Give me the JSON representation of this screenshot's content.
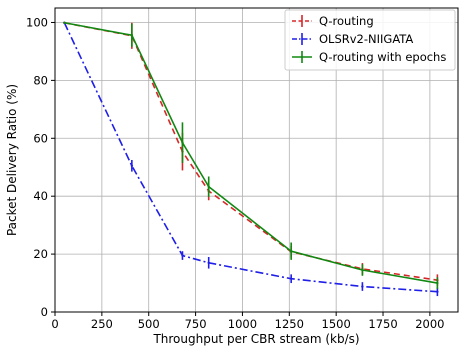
{
  "chart_data": {
    "type": "line",
    "title": "",
    "xlabel": "Throughput per CBR stream (kb/s)",
    "ylabel": "Packet Delivery Ratio (%)",
    "xlim": [
      0,
      2150
    ],
    "ylim": [
      0,
      105
    ],
    "x_ticks": [
      0,
      250,
      500,
      750,
      1000,
      1250,
      1500,
      1750,
      2000
    ],
    "y_ticks": [
      0,
      20,
      40,
      60,
      80,
      100
    ],
    "grid": true,
    "legend_position": "top-right",
    "series": [
      {
        "name": "Q-routing",
        "color": "#d62728",
        "line_style": "dashed",
        "x": [
          50,
          410,
          680,
          820,
          1260,
          1640,
          2040
        ],
        "y": [
          99.9,
          95.4,
          55.4,
          41.8,
          20.8,
          14.9,
          11.0
        ],
        "y_err": [
          0.2,
          4.5,
          6.5,
          3.2,
          2.0,
          2.0,
          2.0
        ]
      },
      {
        "name": "OLSRv2-NIIGATA",
        "color": "#1f1fe8",
        "line_style": "dashdot",
        "x": [
          50,
          410,
          680,
          820,
          1260,
          1640,
          2040
        ],
        "y": [
          99.9,
          50.5,
          19.5,
          17.0,
          11.5,
          8.8,
          7.0
        ],
        "y_err": [
          0.2,
          2.0,
          1.5,
          2.0,
          1.5,
          1.5,
          1.5
        ]
      },
      {
        "name": "Q-routing with epochs",
        "color": "#118811",
        "line_style": "solid",
        "x": [
          50,
          410,
          680,
          820,
          1260,
          1640,
          2040
        ],
        "y": [
          99.9,
          95.6,
          58.5,
          43.3,
          21.0,
          14.5,
          10.0
        ],
        "y_err": [
          0.2,
          4.0,
          7.0,
          3.5,
          3.0,
          2.0,
          2.0
        ]
      }
    ]
  }
}
